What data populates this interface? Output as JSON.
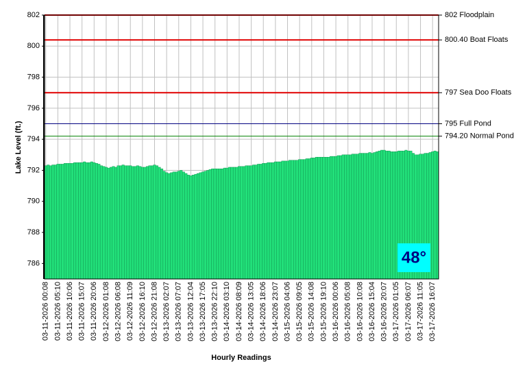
{
  "chart_data": {
    "type": "bar",
    "ylabel": "Lake Level (ft.)",
    "xlabel": "Hourly Readings",
    "annotation": "48°",
    "color": "#22e07a",
    "grid": true,
    "ylim": [
      785,
      802
    ],
    "yticks": [
      786,
      788,
      790,
      792,
      794,
      796,
      798,
      800,
      802
    ],
    "reference_lines": [
      {
        "value": 802,
        "label": "802 Floodplain",
        "color": "#e00000"
      },
      {
        "value": 800.4,
        "label": "800.40 Boat Floats",
        "color": "#e00000"
      },
      {
        "value": 797,
        "label": "797 Sea Doo Floats",
        "color": "#e00000"
      },
      {
        "value": 795,
        "label": "795 Full Pond",
        "color": "#000080"
      },
      {
        "value": 794.2,
        "label": "794.20 Normal Pond",
        "color": "#008000"
      }
    ],
    "categories": [
      "03-11-2026 00:08",
      null,
      null,
      null,
      null,
      "03-11-2026 05:10",
      null,
      null,
      null,
      null,
      "03-11-2026 10:06",
      null,
      null,
      null,
      null,
      "03-11-2026 15:07",
      null,
      null,
      null,
      null,
      "03-11-2026 20:06",
      null,
      null,
      null,
      null,
      "03-12-2026 01:08",
      null,
      null,
      null,
      null,
      "03-12-2026 06:08",
      null,
      null,
      null,
      null,
      "03-12-2026 11:09",
      null,
      null,
      null,
      null,
      "03-12-2026 16:10",
      null,
      null,
      null,
      null,
      "03-12-2026 21:08",
      null,
      null,
      null,
      null,
      "03-13-2026 02:07",
      null,
      null,
      null,
      null,
      "03-13-2026 07:07",
      null,
      null,
      null,
      null,
      "03-13-2026 12:04",
      null,
      null,
      null,
      null,
      "03-13-2026 17:05",
      null,
      null,
      null,
      null,
      "03-13-2026 22:10",
      null,
      null,
      null,
      null,
      "03-14-2026 03:10",
      null,
      null,
      null,
      null,
      "03-14-2026 08:09",
      null,
      null,
      null,
      null,
      "03-14-2026 13:05",
      null,
      null,
      null,
      null,
      "03-14-2026 18:06",
      null,
      null,
      null,
      null,
      "03-14-2026 23:07",
      null,
      null,
      null,
      null,
      "03-15-2026 04:06",
      null,
      null,
      null,
      null,
      "03-15-2026 09:05",
      null,
      null,
      null,
      null,
      "03-15-2026 14:08",
      null,
      null,
      null,
      null,
      "03-15-2026 19:10",
      null,
      null,
      null,
      null,
      "03-16-2026 00:06",
      null,
      null,
      null,
      null,
      "03-16-2026 05:08",
      null,
      null,
      null,
      null,
      "03-16-2026 10:08",
      null,
      null,
      null,
      null,
      "03-16-2026 15:04",
      null,
      null,
      null,
      null,
      "03-16-2026 20:07",
      null,
      null,
      null,
      null,
      "03-17-2026 01:05",
      null,
      null,
      null,
      null,
      "03-17-2026 06:07",
      null,
      null,
      null,
      null,
      "03-17-2026 11:05",
      null,
      null,
      null,
      null,
      "03-17-2026 16:07",
      null,
      null
    ],
    "values": [
      792.3,
      792.35,
      792.3,
      792.35,
      792.35,
      792.4,
      792.4,
      792.4,
      792.45,
      792.45,
      792.45,
      792.45,
      792.5,
      792.5,
      792.5,
      792.5,
      792.55,
      792.5,
      792.5,
      792.55,
      792.5,
      792.45,
      792.4,
      792.3,
      792.25,
      792.2,
      792.15,
      792.2,
      792.25,
      792.2,
      792.3,
      792.3,
      792.35,
      792.3,
      792.3,
      792.3,
      792.25,
      792.25,
      792.3,
      792.25,
      792.2,
      792.2,
      792.25,
      792.3,
      792.3,
      792.35,
      792.3,
      792.2,
      792.1,
      791.95,
      791.85,
      791.8,
      791.85,
      791.9,
      791.9,
      791.95,
      792.0,
      791.9,
      791.8,
      791.7,
      791.65,
      791.7,
      791.75,
      791.8,
      791.85,
      791.9,
      791.95,
      792.0,
      792.05,
      792.1,
      792.1,
      792.1,
      792.1,
      792.1,
      792.15,
      792.15,
      792.2,
      792.2,
      792.2,
      792.2,
      792.25,
      792.25,
      792.25,
      792.3,
      792.3,
      792.3,
      792.35,
      792.35,
      792.4,
      792.4,
      792.45,
      792.45,
      792.5,
      792.5,
      792.5,
      792.55,
      792.55,
      792.55,
      792.6,
      792.6,
      792.6,
      792.65,
      792.65,
      792.65,
      792.65,
      792.7,
      792.7,
      792.7,
      792.75,
      792.75,
      792.8,
      792.8,
      792.85,
      792.85,
      792.85,
      792.85,
      792.85,
      792.85,
      792.9,
      792.9,
      792.9,
      792.95,
      792.95,
      793.0,
      793.0,
      793.0,
      793.0,
      793.05,
      793.05,
      793.05,
      793.1,
      793.1,
      793.1,
      793.1,
      793.15,
      793.1,
      793.15,
      793.2,
      793.25,
      793.3,
      793.3,
      793.25,
      793.25,
      793.2,
      793.2,
      793.2,
      793.25,
      793.25,
      793.25,
      793.3,
      793.25,
      793.25,
      793.1,
      793.0,
      793.0,
      793.05,
      793.05,
      793.1,
      793.1,
      793.15,
      793.2,
      793.25,
      793.2
    ]
  }
}
